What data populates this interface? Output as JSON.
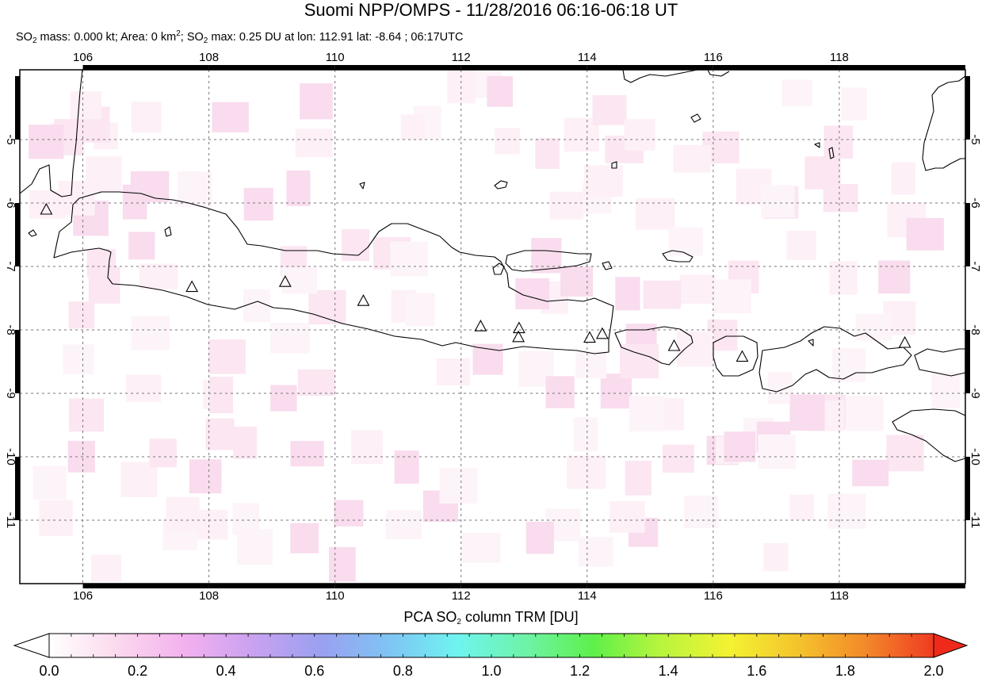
{
  "title": "Suomi NPP/OMPS - 11/28/2016 06:16-06:18 UT",
  "subtitle": {
    "mass_prefix": "SO",
    "mass_sub": "2",
    "mass_text": " mass: 0.000 kt; Area: 0 km",
    "area_sup": "2",
    "max_prefix": "; SO",
    "max_sub": "2",
    "max_text": " max: 0.25 DU at lon: 112.91 lat: -8.64 ; 06:17UTC"
  },
  "map": {
    "lon_range": [
      105,
      120
    ],
    "lat_range": [
      -12,
      -3.9
    ],
    "lon_ticks": [
      106,
      108,
      110,
      112,
      114,
      116,
      118
    ],
    "lat_ticks": [
      -5,
      -6,
      -7,
      -8,
      -9,
      -10,
      -11
    ],
    "lon_tick_labels": [
      "106",
      "108",
      "110",
      "112",
      "114",
      "116",
      "118"
    ],
    "lat_tick_labels": [
      "-5",
      "-6",
      "-7",
      "-8",
      "-9",
      "-10",
      "-11"
    ],
    "grid": true,
    "coastline_color": "#000000",
    "background_color": "#ffffff",
    "volcanoes": [
      {
        "lon": 105.42,
        "lat": -6.1
      },
      {
        "lon": 107.73,
        "lat": -7.32
      },
      {
        "lon": 109.21,
        "lat": -7.24
      },
      {
        "lon": 110.45,
        "lat": -7.54
      },
      {
        "lon": 112.31,
        "lat": -7.94
      },
      {
        "lon": 112.92,
        "lat": -7.97
      },
      {
        "lon": 112.91,
        "lat": -8.11
      },
      {
        "lon": 114.04,
        "lat": -8.12
      },
      {
        "lon": 114.24,
        "lat": -8.06
      },
      {
        "lon": 115.38,
        "lat": -8.25
      },
      {
        "lon": 116.46,
        "lat": -8.42
      },
      {
        "lon": 119.04,
        "lat": -8.2
      }
    ]
  },
  "colorbar": {
    "label_prefix": "PCA SO",
    "label_sub": "2",
    "label_suffix": " column TRM [DU]",
    "min": 0.0,
    "max": 2.0,
    "tick_values": [
      0.0,
      0.2,
      0.4,
      0.6,
      0.8,
      1.0,
      1.2,
      1.4,
      1.6,
      1.8,
      2.0
    ],
    "tick_labels": [
      "0.0",
      "0.2",
      "0.4",
      "0.6",
      "0.8",
      "1.0",
      "1.2",
      "1.4",
      "1.6",
      "1.8",
      "2.0"
    ],
    "colors": [
      "#ffffff",
      "#fbd9ee",
      "#f3b0ef",
      "#c9a2f0",
      "#9aa0f0",
      "#7fc4f4",
      "#6ff4f0",
      "#6ef3a8",
      "#5ef04a",
      "#b9f53d",
      "#f4f232",
      "#f4c42c",
      "#f3892a",
      "#ef3a22"
    ],
    "under_color": "#ffffff",
    "over_color": "#ef2a1a"
  }
}
